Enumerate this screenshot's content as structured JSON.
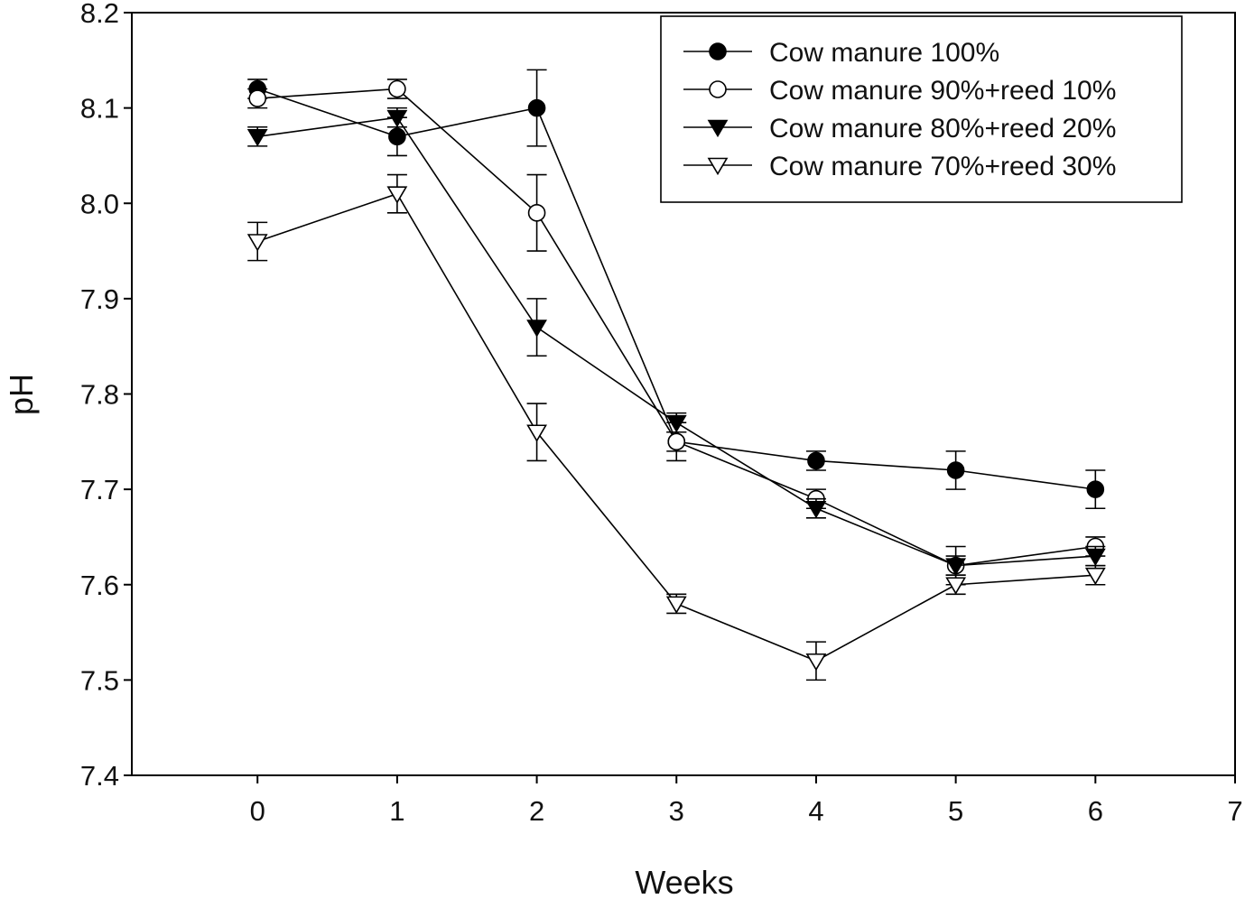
{
  "chart_data": {
    "type": "line",
    "xlabel": "Weeks",
    "ylabel": "pH",
    "xlim": [
      -0.9,
      7
    ],
    "ylim": [
      7.4,
      8.2
    ],
    "xticks": [
      "0",
      "1",
      "2",
      "3",
      "4",
      "5",
      "6",
      "7"
    ],
    "yticks": [
      "7.4",
      "7.5",
      "7.6",
      "7.7",
      "7.8",
      "7.9",
      "8.0",
      "8.1",
      "8.2"
    ],
    "grid": false,
    "legend_position": "top-right",
    "x": [
      0,
      1,
      2,
      3,
      4,
      5,
      6
    ],
    "series": [
      {
        "name": "Cow manure 100%",
        "marker": "circle-filled",
        "values": [
          8.12,
          8.07,
          8.1,
          7.75,
          7.73,
          7.72,
          7.7
        ],
        "errors": [
          0.01,
          0.02,
          0.04,
          0.01,
          0.01,
          0.02,
          0.02
        ]
      },
      {
        "name": "Cow manure 90%+reed 10%",
        "marker": "circle-open",
        "values": [
          8.11,
          8.12,
          7.99,
          7.75,
          7.69,
          7.62,
          7.64
        ],
        "errors": [
          0.01,
          0.01,
          0.04,
          0.02,
          0.01,
          0.01,
          0.01
        ]
      },
      {
        "name": "Cow manure 80%+reed 20%",
        "marker": "triangle-down-filled",
        "values": [
          8.07,
          8.09,
          7.87,
          7.77,
          7.68,
          7.62,
          7.63
        ],
        "errors": [
          0.01,
          0.01,
          0.03,
          0.01,
          0.01,
          0.02,
          0.01
        ]
      },
      {
        "name": "Cow manure 70%+reed 30%",
        "marker": "triangle-down-open",
        "values": [
          7.96,
          8.01,
          7.76,
          7.58,
          7.52,
          7.6,
          7.61
        ],
        "errors": [
          0.02,
          0.02,
          0.03,
          0.01,
          0.02,
          0.01,
          0.01
        ]
      }
    ]
  }
}
